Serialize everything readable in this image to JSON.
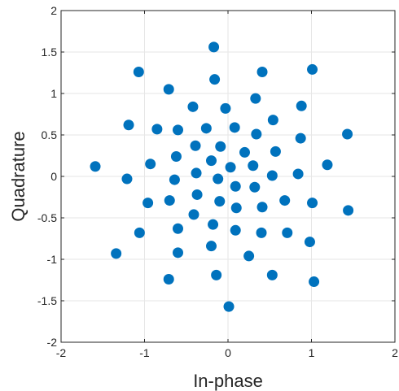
{
  "chart_data": {
    "type": "scatter",
    "xlabel": "In-phase",
    "ylabel": "Quadrature",
    "xlim": [
      -2,
      2
    ],
    "ylim": [
      -2,
      2
    ],
    "xticks": [
      -2,
      -1,
      0,
      1,
      2
    ],
    "yticks": [
      -2,
      -1.5,
      -1,
      -0.5,
      0,
      0.5,
      1,
      1.5,
      2
    ],
    "xtick_labels": [
      "-2",
      "-1",
      "0",
      "1",
      "2"
    ],
    "ytick_labels": [
      "-2",
      "-1.5",
      "-1",
      "-0.5",
      "0",
      "0.5",
      "1",
      "1.5",
      "2"
    ],
    "grid": true,
    "marker_color": "#0072bd",
    "points": [
      [
        -0.17,
        1.56
      ],
      [
        -1.07,
        1.26
      ],
      [
        1.01,
        1.29
      ],
      [
        0.41,
        1.26
      ],
      [
        -0.71,
        1.05
      ],
      [
        -0.16,
        1.17
      ],
      [
        -0.42,
        0.84
      ],
      [
        0.33,
        0.94
      ],
      [
        -0.03,
        0.82
      ],
      [
        0.88,
        0.85
      ],
      [
        -1.19,
        0.62
      ],
      [
        -0.85,
        0.57
      ],
      [
        -0.6,
        0.56
      ],
      [
        -0.26,
        0.58
      ],
      [
        0.08,
        0.59
      ],
      [
        0.54,
        0.68
      ],
      [
        0.34,
        0.51
      ],
      [
        0.87,
        0.46
      ],
      [
        1.43,
        0.51
      ],
      [
        -0.39,
        0.37
      ],
      [
        -0.09,
        0.36
      ],
      [
        0.2,
        0.29
      ],
      [
        0.57,
        0.3
      ],
      [
        -0.62,
        0.24
      ],
      [
        -0.93,
        0.15
      ],
      [
        -0.2,
        0.19
      ],
      [
        0.03,
        0.11
      ],
      [
        0.3,
        0.13
      ],
      [
        1.19,
        0.14
      ],
      [
        -1.59,
        0.12
      ],
      [
        -0.38,
        0.04
      ],
      [
        -0.64,
        -0.04
      ],
      [
        -0.12,
        -0.03
      ],
      [
        0.53,
        0.01
      ],
      [
        0.84,
        0.03
      ],
      [
        -1.21,
        -0.03
      ],
      [
        0.09,
        -0.12
      ],
      [
        0.32,
        -0.13
      ],
      [
        -0.37,
        -0.22
      ],
      [
        -0.96,
        -0.32
      ],
      [
        -0.7,
        -0.29
      ],
      [
        -0.1,
        -0.3
      ],
      [
        0.1,
        -0.38
      ],
      [
        0.41,
        -0.37
      ],
      [
        0.68,
        -0.29
      ],
      [
        1.01,
        -0.32
      ],
      [
        1.44,
        -0.41
      ],
      [
        -0.41,
        -0.46
      ],
      [
        -0.18,
        -0.58
      ],
      [
        -0.6,
        -0.63
      ],
      [
        0.09,
        -0.65
      ],
      [
        0.4,
        -0.68
      ],
      [
        0.71,
        -0.68
      ],
      [
        -1.06,
        -0.68
      ],
      [
        -0.2,
        -0.84
      ],
      [
        0.98,
        -0.79
      ],
      [
        -1.34,
        -0.93
      ],
      [
        -0.6,
        -0.92
      ],
      [
        0.25,
        -0.96
      ],
      [
        -0.14,
        -1.19
      ],
      [
        0.53,
        -1.19
      ],
      [
        -0.71,
        -1.24
      ],
      [
        1.03,
        -1.27
      ],
      [
        0.01,
        -1.57
      ]
    ]
  }
}
